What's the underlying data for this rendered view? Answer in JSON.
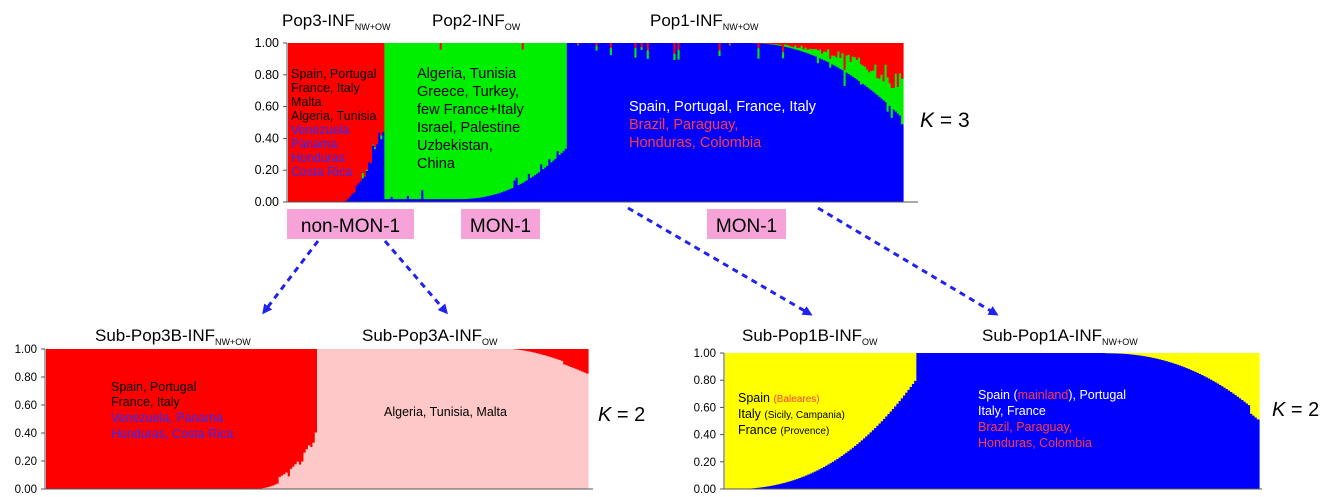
{
  "colors": {
    "red": "#ff0000",
    "green": "#00ee00",
    "blue": "#0000ff",
    "pink": "#ffc8c8",
    "yellow": "#ffff00",
    "label_red": "#ff3b3b",
    "label_blue": "#2d2dff",
    "tag_bg": "#f5a3d8",
    "arrow": "#2222ee"
  },
  "tags": {
    "left": "non-MON-1",
    "middle": "MON-1",
    "right": "MON-1"
  },
  "k_labels": {
    "top": {
      "k": "K",
      "eq": " = 3"
    },
    "bottom_left": {
      "k": "K",
      "eq": " = 2"
    },
    "bottom_right": {
      "k": "K",
      "eq": " = 2"
    }
  },
  "chart_data": [
    {
      "id": "top",
      "type": "bar",
      "subtype": "stacked-admixture",
      "ylim": [
        0,
        1
      ],
      "yticks": [
        "1.00",
        "0.80",
        "0.60",
        "0.40",
        "0.20",
        "0.00"
      ],
      "series": [
        {
          "name": "Pop3",
          "color": "red"
        },
        {
          "name": "Pop2",
          "color": "green"
        },
        {
          "name": "Pop1",
          "color": "blue"
        }
      ],
      "groups": [
        {
          "title": "Pop3-INF",
          "sub": "NW+OW",
          "dominant": "red",
          "share": 0.155,
          "label_lines": [
            {
              "text": "Spain, Portugal",
              "color": "black"
            },
            {
              "text": "France, Italy",
              "color": "black"
            },
            {
              "text": "Malta",
              "color": "black"
            },
            {
              "text": "Algeria, Tunisia",
              "color": "black"
            },
            {
              "text": "Venezuela",
              "color": "blue"
            },
            {
              "text": "Panama",
              "color": "blue"
            },
            {
              "text": "Honduras",
              "color": "blue"
            },
            {
              "text": "Costa Rica",
              "color": "blue"
            }
          ]
        },
        {
          "title": "Pop2-INF",
          "sub": "OW",
          "dominant": "green",
          "share": 0.295,
          "label_lines": [
            {
              "text": "Algeria, Tunisia",
              "color": "black"
            },
            {
              "text": "Greece, Turkey,",
              "color": "black"
            },
            {
              "text": "few France+Italy",
              "color": "black"
            },
            {
              "text": "Israel, Palestine",
              "color": "black"
            },
            {
              "text": "Uzbekistan,",
              "color": "black"
            },
            {
              "text": "China",
              "color": "black"
            }
          ]
        },
        {
          "title": "Pop1-INF",
          "sub": "NW+OW",
          "dominant": "blue",
          "share": 0.55,
          "label_lines": [
            {
              "text": "Spain, Portugal, France, Italy",
              "color": "white"
            },
            {
              "text": "Brazil, Paraguay,",
              "color": "red"
            },
            {
              "text": "Honduras, Colombia",
              "color": "red"
            }
          ]
        }
      ]
    },
    {
      "id": "bottom_left",
      "type": "bar",
      "subtype": "stacked-admixture",
      "ylim": [
        0,
        1
      ],
      "yticks": [
        "1.00",
        "0.80",
        "0.60",
        "0.40",
        "0.20",
        "0.00"
      ],
      "series": [
        {
          "name": "Sub-Pop3B",
          "color": "red"
        },
        {
          "name": "Sub-Pop3A",
          "color": "pink"
        }
      ],
      "groups": [
        {
          "title": "Sub-Pop3B-INF",
          "sub": "NW+OW",
          "dominant": "red",
          "share": 0.5,
          "label_lines": [
            {
              "text": "Spain, Portugal",
              "color": "black"
            },
            {
              "text": "France, Italy",
              "color": "black"
            },
            {
              "text": "Venezuela, Panama",
              "color": "blue"
            },
            {
              "text": "Honduras, Costa Rica",
              "color": "blue"
            }
          ]
        },
        {
          "title": "Sub-Pop3A-INF",
          "sub": "OW",
          "dominant": "pink",
          "share": 0.5,
          "label_lines": [
            {
              "text": "Algeria, Tunisia, Malta",
              "color": "black"
            }
          ]
        }
      ]
    },
    {
      "id": "bottom_right",
      "type": "bar",
      "subtype": "stacked-admixture",
      "ylim": [
        0,
        1
      ],
      "yticks": [
        "1.00",
        "0.80",
        "0.60",
        "0.40",
        "0.20",
        "0.00"
      ],
      "series": [
        {
          "name": "Sub-Pop1B",
          "color": "yellow"
        },
        {
          "name": "Sub-Pop1A",
          "color": "blue"
        }
      ],
      "groups": [
        {
          "title": "Sub-Pop1B-INF",
          "sub": "OW",
          "dominant": "yellow",
          "share": 0.36,
          "label_rich": [
            [
              {
                "text": "Spain ",
                "color": "black"
              },
              {
                "text": "(Baleares)",
                "color": "red",
                "small": true
              }
            ],
            [
              {
                "text": "Italy ",
                "color": "black"
              },
              {
                "text": "(Sicily, Campania)",
                "color": "black",
                "small": true
              }
            ],
            [
              {
                "text": "France ",
                "color": "black"
              },
              {
                "text": "(Provence)",
                "color": "black",
                "small": true
              }
            ]
          ]
        },
        {
          "title": "Sub-Pop1A-INF",
          "sub": "NW+OW",
          "dominant": "blue",
          "share": 0.64,
          "label_rich": [
            [
              {
                "text": "Spain (",
                "color": "white"
              },
              {
                "text": "mainland",
                "color": "red"
              },
              {
                "text": "), Portugal",
                "color": "white"
              }
            ],
            [
              {
                "text": "Italy, France",
                "color": "white"
              }
            ],
            [
              {
                "text": "Brazil, Paraguay,",
                "color": "red"
              }
            ],
            [
              {
                "text": "Honduras, Colombia",
                "color": "red"
              }
            ]
          ]
        }
      ]
    }
  ]
}
